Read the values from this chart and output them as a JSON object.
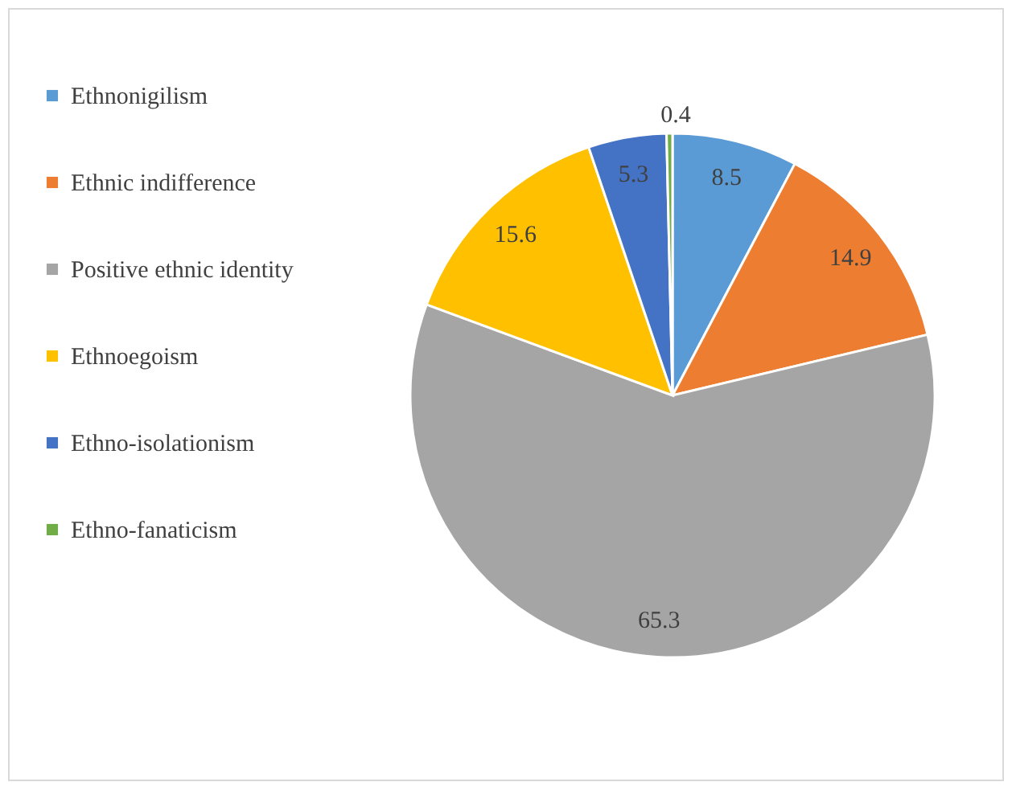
{
  "chart_data": {
    "type": "pie",
    "categories": [
      "Ethnonigilism",
      "Ethnic indifference",
      "Positive ethnic identity",
      "Ethnoegoism",
      "Ethno-isolationism",
      "Ethno-fanaticism"
    ],
    "values": [
      8.5,
      14.9,
      65.3,
      15.6,
      5.3,
      0.4
    ],
    "colors": [
      "#5b9bd5",
      "#ed7d31",
      "#a5a5a5",
      "#ffc000",
      "#4472c4",
      "#70ad47"
    ],
    "data_labels": true,
    "legend": "left"
  }
}
